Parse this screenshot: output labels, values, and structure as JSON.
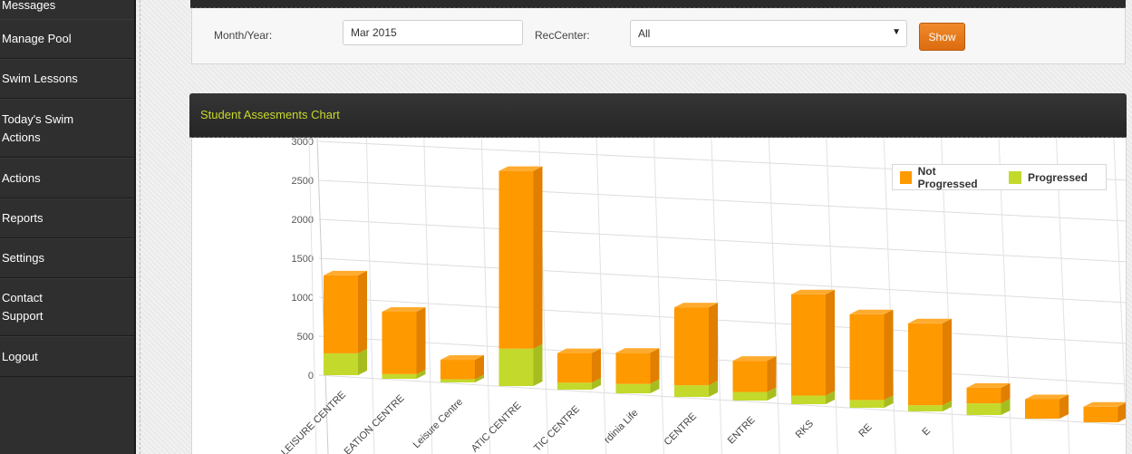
{
  "sidebar": {
    "items": [
      {
        "label": "Messages"
      },
      {
        "label": "Manage Pool"
      },
      {
        "label": "Swim Lessons"
      },
      {
        "label": "Today's Swim Actions"
      },
      {
        "label": "Actions"
      },
      {
        "label": "Reports"
      },
      {
        "label": "Settings"
      },
      {
        "label": "Contact Support"
      },
      {
        "label": "Logout"
      }
    ]
  },
  "filters": {
    "month_label": "Month/Year:",
    "month_value": "Mar 2015",
    "rec_label": "RecCenter:",
    "rec_value": "All",
    "show_label": "Show"
  },
  "chart_panel": {
    "title": "Student Assesments Chart"
  },
  "colors": {
    "not_progressed": "#ff9900",
    "progressed": "#c3d92c"
  },
  "chart_data": {
    "type": "bar",
    "stacked": true,
    "view": "3d",
    "title": "",
    "ylim": [
      0,
      3000
    ],
    "y_ticks": [
      "0",
      "500",
      "1000",
      "1500",
      "2000",
      "2500",
      "3000"
    ],
    "legend_position": "top-right",
    "categories": [
      "LEISURE CENTRE",
      "EATION CENTRE",
      "Leisure Centre",
      "ATIC CENTRE",
      "TIC CENTRE",
      "rdinia Life",
      "CENTRE",
      "ENTRE",
      "RKS",
      "RE",
      "E",
      "",
      "",
      ""
    ],
    "series": [
      {
        "name": "Not Progressed",
        "values": [
          1000,
          800,
          250,
          2280,
          380,
          400,
          1000,
          400,
          1300,
          1100,
          1050,
          200,
          250,
          200
        ]
      },
      {
        "name": "Progressed",
        "values": [
          280,
          60,
          40,
          480,
          90,
          120,
          150,
          110,
          110,
          100,
          80,
          150,
          0,
          0
        ]
      }
    ]
  }
}
